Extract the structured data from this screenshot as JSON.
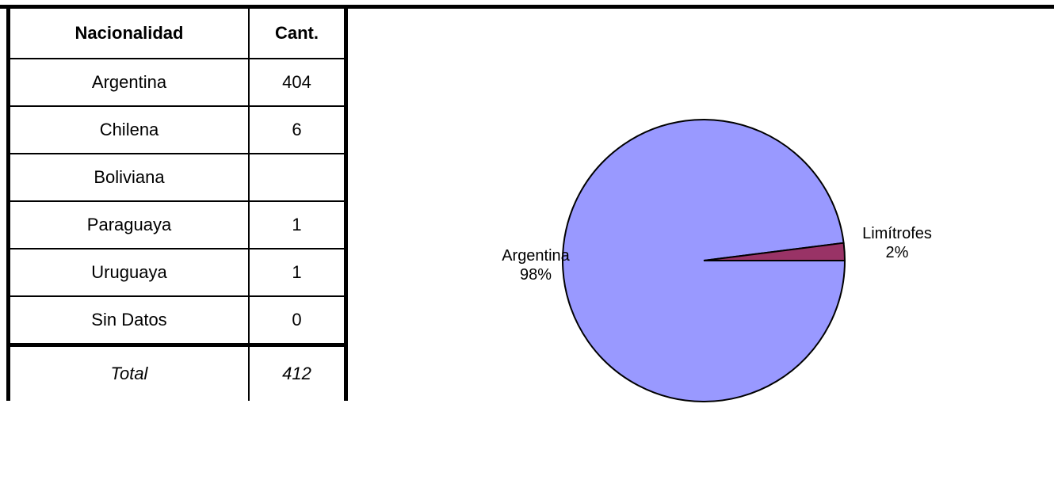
{
  "table": {
    "headers": [
      "Nacionalidad",
      "Cant."
    ],
    "rows": [
      {
        "label": "Argentina",
        "value": "404"
      },
      {
        "label": "Chilena",
        "value": "6"
      },
      {
        "label": "Boliviana",
        "value": ""
      },
      {
        "label": "Paraguaya",
        "value": "1"
      },
      {
        "label": "Uruguaya",
        "value": "1"
      },
      {
        "label": "Sin Datos",
        "value": "0"
      }
    ],
    "total": {
      "label": "Total",
      "value": "412"
    }
  },
  "chart_data": {
    "type": "pie",
    "slices": [
      {
        "label": "Argentina",
        "percent_label": "98%",
        "value": 98,
        "color": "#9999ff"
      },
      {
        "label": "Limítrofes",
        "percent_label": "2%",
        "value": 2,
        "color": "#993366"
      }
    ],
    "title": "",
    "legend": "none"
  }
}
